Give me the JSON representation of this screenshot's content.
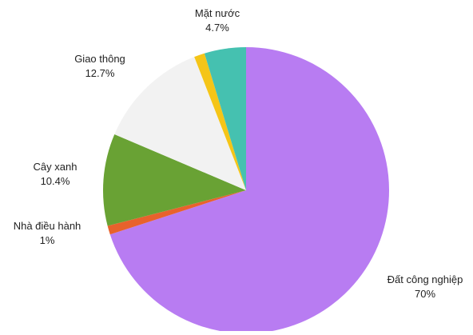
{
  "chart_data": {
    "type": "pie",
    "start_angle_deg": 0,
    "direction": "clockwise",
    "slices": [
      {
        "label": "Đất công nghiệp",
        "value": 70,
        "value_label": "70%",
        "color": "#B87CF2"
      },
      {
        "label": "Nhà điều hành",
        "value": 1,
        "value_label": "1%",
        "color": "#E8622C"
      },
      {
        "label": "Cây xanh",
        "value": 10.4,
        "value_label": "10.4%",
        "color": "#69A234"
      },
      {
        "label": "Giao thông",
        "value": 12.7,
        "value_label": "12.7%",
        "color": "#F2F2F2"
      },
      {
        "label": "",
        "value": 1.2,
        "value_label": "",
        "color": "#F5C518"
      },
      {
        "label": "Mặt nước",
        "value": 4.7,
        "value_label": "4.7%",
        "color": "#45C1B0"
      }
    ]
  }
}
